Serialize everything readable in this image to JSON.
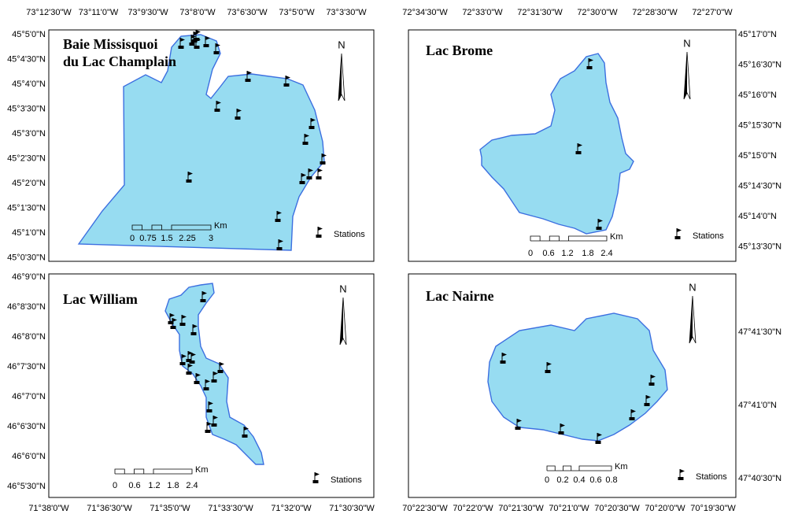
{
  "panels": [
    {
      "title_lines": [
        "Baie Missisquoi",
        "du Lac Champlain"
      ],
      "x_labels": [
        "73°12'30\"W",
        "73°11'0\"W",
        "73°9'30\"W",
        "73°8'0\"W",
        "73°6'30\"W",
        "73°5'0\"W",
        "73°3'30\"W"
      ],
      "y_labels": [
        "45°5'0\"N",
        "45°4'30\"N",
        "45°4'0\"N",
        "45°3'30\"N",
        "45°3'0\"N",
        "45°2'30\"N",
        "45°2'0\"N",
        "45°1'30\"N",
        "45°1'0\"N",
        "45°0'30\"N"
      ],
      "scale_labels": [
        "0",
        "0.75",
        "1.5",
        "2.25",
        "3"
      ],
      "scale_unit": "Km",
      "north": "N",
      "legend": "Stations"
    },
    {
      "title_lines": [
        "Lac Brome"
      ],
      "x_labels": [
        "72°34'30\"W",
        "72°33'0\"W",
        "72°31'30\"W",
        "72°30'0\"W",
        "72°28'30\"W",
        "72°27'0\"W"
      ],
      "y_labels": [
        "45°17'0\"N",
        "45°16'30\"N",
        "45°16'0\"N",
        "45°15'30\"N",
        "45°15'0\"N",
        "45°14'30\"N",
        "45°14'0\"N",
        "45°13'30\"N"
      ],
      "scale_labels": [
        "0",
        "0.6",
        "1.2",
        "1.8",
        "2.4"
      ],
      "scale_unit": "Km",
      "north": "N",
      "legend": "Stations"
    },
    {
      "title_lines": [
        "Lac William"
      ],
      "x_labels": [
        "71°38'0\"W",
        "71°36'30\"W",
        "71°35'0\"W",
        "71°33'30\"W",
        "71°32'0\"W",
        "71°30'30\"W"
      ],
      "y_labels": [
        "46°9'0\"N",
        "46°8'30\"N",
        "46°8'0\"N",
        "46°7'30\"N",
        "46°7'0\"N",
        "46°6'30\"N",
        "46°6'0\"N",
        "46°5'30\"N"
      ],
      "scale_labels": [
        "0",
        "0.6",
        "1.2",
        "1.8",
        "2.4"
      ],
      "scale_unit": "Km",
      "north": "N",
      "legend": "Stations"
    },
    {
      "title_lines": [
        "Lac Nairne"
      ],
      "x_labels": [
        "70°22'30\"W",
        "70°22'0\"W",
        "70°21'30\"W",
        "70°21'0\"W",
        "70°20'30\"W",
        "70°20'0\"W",
        "70°19'30\"W"
      ],
      "y_labels": [
        "47°41'30\"N",
        "47°41'0\"N",
        "47°40'30\"N"
      ],
      "scale_labels": [
        "0",
        "0.2",
        "0.4",
        "0.6",
        "0.8"
      ],
      "scale_unit": "Km",
      "north": "N",
      "legend": "Stations"
    }
  ]
}
